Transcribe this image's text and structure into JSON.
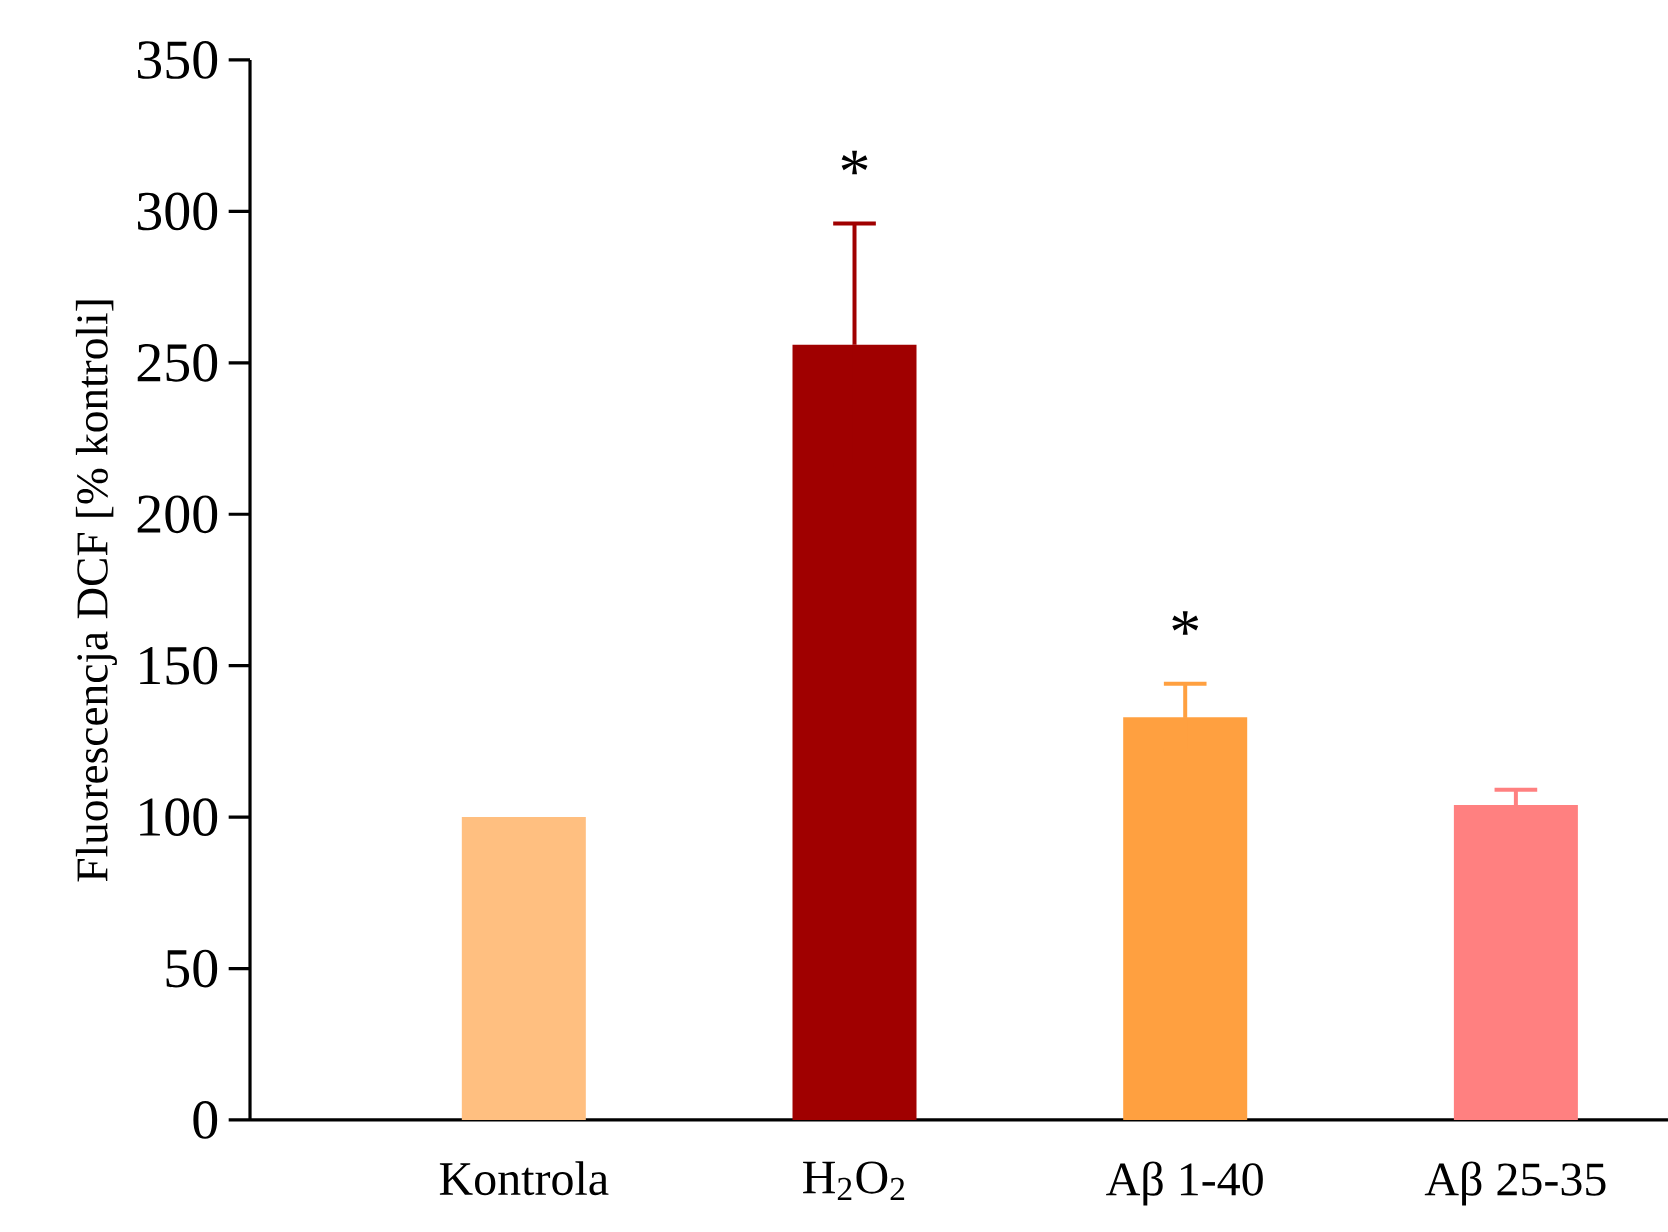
{
  "chart_data": {
    "type": "bar",
    "ylabel": "Fluorescencja DCF [% kontroli]",
    "categories": [
      "Kontrola",
      "H$_{2}$O$_{2}$",
      "Aβ 1-40",
      "Aβ 25-35"
    ],
    "values": [
      100,
      256,
      133,
      104
    ],
    "errors": [
      null,
      40,
      11,
      5
    ],
    "colors": [
      "#ffbf80",
      "#a00000",
      "#ffa040",
      "#ff8080"
    ],
    "ylim": [
      0,
      350
    ],
    "yticks": [
      0,
      50,
      100,
      150,
      200,
      250,
      300,
      350
    ],
    "annotations": [
      "*",
      "*"
    ]
  }
}
